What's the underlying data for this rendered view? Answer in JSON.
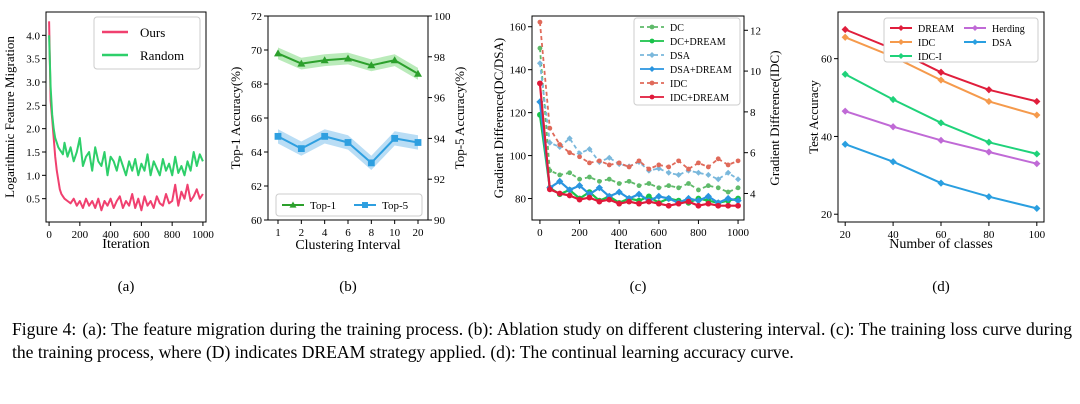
{
  "caption": {
    "label": "Figure 4:",
    "text": "(a): The feature migration during the training process. (b): Ablation study on different clustering interval. (c): The training loss curve during the training process, where (D) indicates DREAM strategy applied. (d): The continual learning accuracy curve."
  },
  "chart_data": [
    {
      "id": "a",
      "type": "line",
      "sublabel": "(a)",
      "title": "",
      "xlabel": "Iteration",
      "ylabel": "Logarithmic Feature Migration",
      "xlim": [
        -20,
        1020
      ],
      "ylim": [
        0.0,
        4.5
      ],
      "xticks": [
        0,
        200,
        400,
        600,
        800,
        1000
      ],
      "yticks": [
        0.5,
        1.0,
        1.5,
        2.0,
        2.5,
        3.0,
        3.5,
        4.0
      ],
      "legend": "top-right",
      "series": [
        {
          "name": "Ours",
          "color": "#f0406f",
          "x": [
            0,
            10,
            20,
            30,
            40,
            50,
            60,
            70,
            80,
            90,
            100,
            120,
            140,
            160,
            180,
            200,
            220,
            240,
            260,
            280,
            300,
            320,
            340,
            360,
            380,
            400,
            420,
            440,
            460,
            480,
            500,
            520,
            540,
            560,
            580,
            600,
            620,
            640,
            660,
            680,
            700,
            720,
            740,
            760,
            780,
            800,
            820,
            840,
            860,
            880,
            900,
            920,
            940,
            960,
            980,
            1000
          ],
          "y": [
            4.3,
            2.6,
            2.2,
            1.8,
            1.4,
            1.1,
            0.9,
            0.7,
            0.6,
            0.55,
            0.5,
            0.45,
            0.4,
            0.5,
            0.35,
            0.45,
            0.3,
            0.5,
            0.35,
            0.45,
            0.3,
            0.5,
            0.25,
            0.45,
            0.35,
            0.5,
            0.3,
            0.45,
            0.55,
            0.3,
            0.45,
            0.35,
            0.6,
            0.3,
            0.5,
            0.25,
            0.55,
            0.35,
            0.45,
            0.3,
            0.55,
            0.4,
            0.35,
            0.6,
            0.4,
            0.45,
            0.8,
            0.35,
            0.65,
            0.5,
            0.8,
            0.45,
            0.55,
            0.7,
            0.5,
            0.6
          ]
        },
        {
          "name": "Random",
          "color": "#2ecf6a",
          "x": [
            0,
            10,
            20,
            30,
            40,
            50,
            60,
            70,
            80,
            90,
            100,
            120,
            140,
            160,
            180,
            200,
            220,
            240,
            260,
            280,
            300,
            320,
            340,
            360,
            380,
            400,
            420,
            440,
            460,
            480,
            500,
            520,
            540,
            560,
            580,
            600,
            620,
            640,
            660,
            680,
            700,
            720,
            740,
            760,
            780,
            800,
            820,
            840,
            860,
            880,
            900,
            920,
            940,
            960,
            980,
            1000
          ],
          "y": [
            4.0,
            2.9,
            2.3,
            2.0,
            1.8,
            1.7,
            1.6,
            1.55,
            1.5,
            1.45,
            1.7,
            1.4,
            1.6,
            1.3,
            1.5,
            1.8,
            1.2,
            1.4,
            1.5,
            1.1,
            1.6,
            1.3,
            1.2,
            1.5,
            1.0,
            1.4,
            1.3,
            1.1,
            1.4,
            1.2,
            1.0,
            1.3,
            1.1,
            1.35,
            1.0,
            1.25,
            1.1,
            1.45,
            1.0,
            1.3,
            1.15,
            1.0,
            1.35,
            1.1,
            1.25,
            1.0,
            1.4,
            1.05,
            1.2,
            1.0,
            1.3,
            1.1,
            1.5,
            1.2,
            1.45,
            1.3
          ]
        }
      ]
    },
    {
      "id": "b",
      "type": "line",
      "sublabel": "(b)",
      "title": "",
      "xlabel": "Clustering Interval",
      "ylabel": "Top-1 Accuracy(%)",
      "ylabel_right": "Top-5 Accuracy(%)",
      "categories": [
        "1",
        "2",
        "4",
        "6",
        "8",
        "10",
        "20"
      ],
      "ylim": [
        60,
        72
      ],
      "yticks": [
        60,
        62,
        64,
        66,
        68,
        70,
        72
      ],
      "ylim_right": [
        90,
        100
      ],
      "yticks_right": [
        90,
        92,
        94,
        96,
        98,
        100
      ],
      "legend": "bottom",
      "series": [
        {
          "name": "Top-1",
          "axis": "left",
          "color": "#2ca02c",
          "fill": "#a9e6a9",
          "values": [
            69.8,
            69.2,
            69.4,
            69.5,
            69.1,
            69.4,
            68.6
          ]
        },
        {
          "name": "Top-5",
          "axis": "right",
          "color": "#2e9fe0",
          "fill": "#a8d4f3",
          "values": [
            94.1,
            93.5,
            94.1,
            93.8,
            92.8,
            94.0,
            93.8
          ]
        }
      ]
    },
    {
      "id": "c",
      "type": "line",
      "sublabel": "(c)",
      "title": "",
      "xlabel": "Iteration",
      "ylabel": "Gradient Difference(DC/DSA)",
      "ylabel_right": "Gradient Difference(IDC)",
      "xlim": [
        -40,
        1030
      ],
      "xticks": [
        0,
        200,
        400,
        600,
        800,
        1000
      ],
      "ylim": [
        70,
        165
      ],
      "yticks": [
        80,
        100,
        120,
        140,
        160
      ],
      "ylim_right": [
        2.7,
        12.7
      ],
      "yticks_right": [
        4,
        6,
        8,
        10,
        12
      ],
      "legend": "top-right",
      "x": [
        0,
        50,
        100,
        150,
        200,
        250,
        300,
        350,
        400,
        450,
        500,
        550,
        600,
        650,
        700,
        750,
        800,
        850,
        900,
        950,
        1000
      ],
      "series": [
        {
          "name": "DC",
          "axis": "left",
          "color": "#5fba6a",
          "dash": "4,3",
          "y": [
            150,
            93,
            91,
            92,
            89,
            90,
            88,
            89,
            87,
            88,
            86,
            87,
            85,
            86,
            85,
            87,
            84,
            86,
            85,
            83,
            85
          ]
        },
        {
          "name": "DC+DREAM",
          "axis": "left",
          "color": "#19c24a",
          "dash": "",
          "y": [
            119,
            85,
            82,
            84,
            80,
            83,
            79,
            81,
            78,
            80,
            79,
            81,
            78,
            80,
            79,
            78,
            80,
            79,
            78,
            79,
            80
          ]
        },
        {
          "name": "DSA",
          "axis": "left",
          "color": "#7ab8dc",
          "dash": "4,3",
          "y": [
            143,
            106,
            104,
            108,
            101,
            103,
            97,
            99,
            96,
            95,
            97,
            93,
            94,
            92,
            91,
            93,
            92,
            91,
            89,
            92,
            89
          ]
        },
        {
          "name": "DSA+DREAM",
          "axis": "left",
          "color": "#2a95e0",
          "dash": "",
          "y": [
            125,
            85,
            88,
            84,
            86,
            82,
            85,
            81,
            83,
            80,
            82,
            79,
            81,
            80,
            78,
            80,
            79,
            81,
            78,
            80,
            79
          ]
        },
        {
          "name": "IDC",
          "axis": "right",
          "color": "#e06a5a",
          "dash": "4,3",
          "y": [
            12.4,
            7.2,
            6.4,
            6.0,
            5.8,
            5.5,
            5.6,
            5.4,
            5.5,
            5.3,
            5.6,
            5.2,
            5.4,
            5.3,
            5.6,
            5.2,
            5.5,
            5.3,
            5.7,
            5.4,
            5.6
          ]
        },
        {
          "name": "IDC+DREAM",
          "axis": "right",
          "color": "#e0193a",
          "dash": "",
          "y": [
            9.4,
            4.2,
            4.0,
            3.9,
            3.7,
            3.8,
            3.6,
            3.7,
            3.5,
            3.6,
            3.5,
            3.6,
            3.5,
            3.4,
            3.5,
            3.6,
            3.4,
            3.5,
            3.4,
            3.4,
            3.4
          ]
        }
      ]
    },
    {
      "id": "d",
      "type": "line",
      "sublabel": "(d)",
      "title": "",
      "xlabel": "Number of classes",
      "ylabel": "Test Accuracy",
      "x": [
        20,
        40,
        60,
        80,
        100
      ],
      "xlim": [
        17,
        103
      ],
      "xticks": [
        20,
        40,
        60,
        80,
        100
      ],
      "ylim": [
        18,
        72
      ],
      "yticks": [
        20,
        40,
        60
      ],
      "legend": "top",
      "series": [
        {
          "name": "DREAM",
          "color": "#e01e3c",
          "values": [
            67.5,
            62.5,
            56.5,
            52.0,
            49.0
          ]
        },
        {
          "name": "IDC",
          "color": "#f59a4c",
          "values": [
            65.5,
            60.5,
            54.5,
            49.0,
            45.5
          ]
        },
        {
          "name": "IDC-I",
          "color": "#1fd27a",
          "values": [
            56.0,
            49.5,
            43.5,
            38.5,
            35.5
          ]
        },
        {
          "name": "Herding",
          "color": "#c06ad6",
          "values": [
            46.5,
            42.5,
            39.0,
            36.0,
            33.0
          ]
        },
        {
          "name": "DSA",
          "color": "#2a9fe0",
          "values": [
            38.0,
            33.5,
            28.0,
            24.5,
            21.5
          ]
        }
      ]
    }
  ]
}
